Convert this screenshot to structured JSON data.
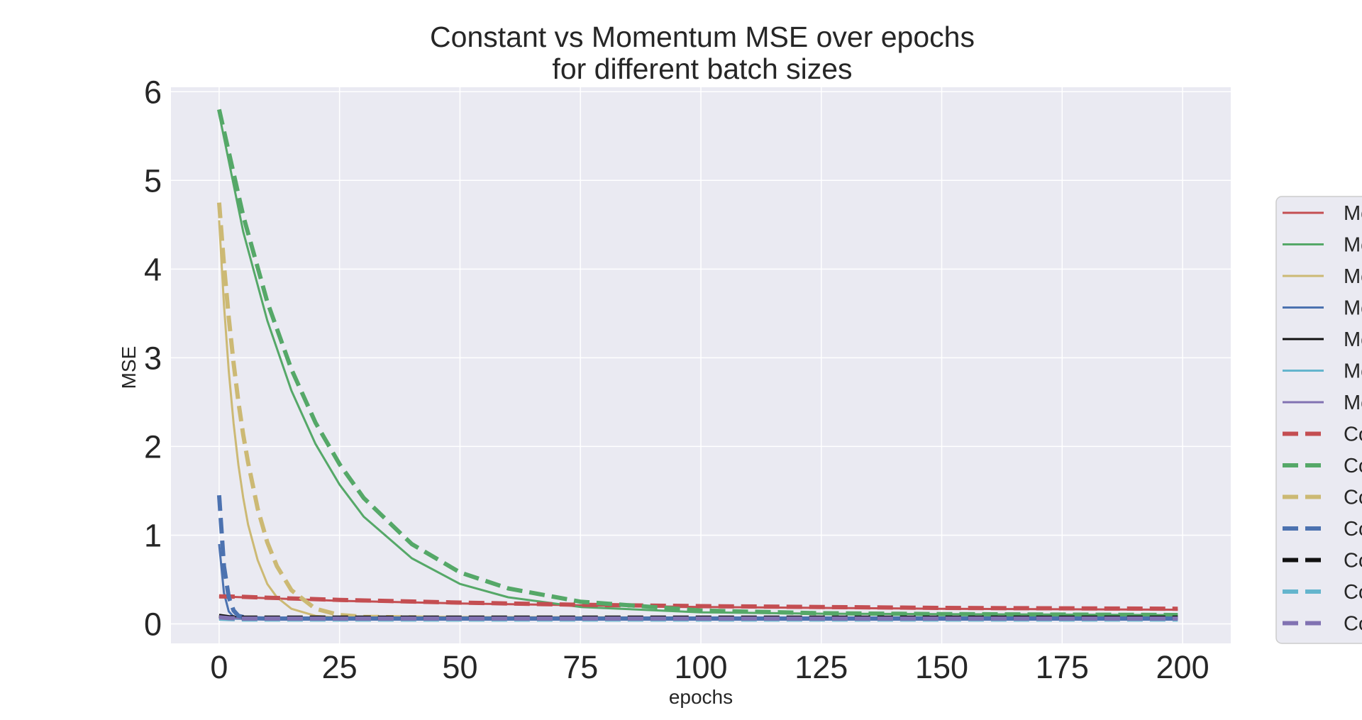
{
  "chart_data": {
    "type": "line",
    "title": "Constant vs Momentum MSE over epochs\nfor different batch sizes",
    "title_lines": [
      "Constant vs Momentum MSE over epochs",
      "for different batch sizes"
    ],
    "xlabel": "epochs",
    "ylabel": "MSE",
    "xlim": [
      -10,
      210
    ],
    "ylim": [
      -0.22,
      6.05
    ],
    "xticks": [
      0,
      25,
      50,
      75,
      100,
      125,
      150,
      175,
      200
    ],
    "yticks": [
      0,
      1,
      2,
      3,
      4,
      5,
      6
    ],
    "grid": true,
    "legend_position": "right (outside, clipped)",
    "background": "#eaeaf2",
    "series": [
      {
        "label": "Mo",
        "style": "solid",
        "color": "#c44e52",
        "x": [
          0,
          5,
          10,
          25,
          50,
          75,
          100,
          125,
          150,
          175,
          199
        ],
        "y": [
          0.31,
          0.3,
          0.29,
          0.26,
          0.23,
          0.21,
          0.19,
          0.18,
          0.17,
          0.165,
          0.16
        ]
      },
      {
        "label": "Mo",
        "style": "solid",
        "color": "#55a868",
        "x": [
          0,
          5,
          10,
          15,
          20,
          25,
          30,
          40,
          50,
          60,
          75,
          100,
          125,
          150,
          175,
          199
        ],
        "y": [
          5.75,
          4.42,
          3.42,
          2.63,
          2.03,
          1.57,
          1.21,
          0.74,
          0.45,
          0.3,
          0.19,
          0.13,
          0.115,
          0.11,
          0.105,
          0.1
        ]
      },
      {
        "label": "Mo",
        "style": "solid",
        "color": "#ccb974",
        "x": [
          0,
          1,
          2,
          3,
          4,
          5,
          6,
          8,
          10,
          12,
          15,
          20,
          25,
          30,
          50,
          100,
          150,
          199
        ],
        "y": [
          4.55,
          3.6,
          2.85,
          2.26,
          1.79,
          1.42,
          1.12,
          0.72,
          0.45,
          0.3,
          0.17,
          0.09,
          0.07,
          0.065,
          0.06,
          0.06,
          0.06,
          0.06
        ]
      },
      {
        "label": "Mo",
        "style": "solid",
        "color": "#4c72b0",
        "x": [
          0,
          1,
          2,
          3,
          5,
          10,
          50,
          100,
          150,
          199
        ],
        "y": [
          0.9,
          0.35,
          0.14,
          0.08,
          0.06,
          0.06,
          0.06,
          0.06,
          0.06,
          0.06
        ]
      },
      {
        "label": "Mo",
        "style": "solid",
        "color": "#111111",
        "x": [
          0,
          2,
          5,
          50,
          100,
          150,
          199
        ],
        "y": [
          0.1,
          0.08,
          0.07,
          0.07,
          0.07,
          0.07,
          0.07
        ]
      },
      {
        "label": "Mo",
        "style": "solid",
        "color": "#64b5cd",
        "x": [
          0,
          2,
          5,
          50,
          100,
          150,
          199
        ],
        "y": [
          0.07,
          0.06,
          0.055,
          0.055,
          0.055,
          0.055,
          0.055
        ]
      },
      {
        "label": "Mo",
        "style": "solid",
        "color": "#8172b2",
        "x": [
          0,
          2,
          5,
          50,
          100,
          150,
          199
        ],
        "y": [
          0.08,
          0.065,
          0.06,
          0.06,
          0.06,
          0.06,
          0.06
        ]
      },
      {
        "label": "Co",
        "style": "dashed",
        "color": "#c44e52",
        "x": [
          0,
          5,
          10,
          25,
          50,
          75,
          100,
          125,
          150,
          175,
          199
        ],
        "y": [
          0.31,
          0.305,
          0.295,
          0.27,
          0.24,
          0.215,
          0.2,
          0.19,
          0.18,
          0.175,
          0.17
        ]
      },
      {
        "label": "Co",
        "style": "dashed",
        "color": "#55a868",
        "x": [
          0,
          5,
          10,
          15,
          20,
          25,
          30,
          40,
          50,
          60,
          75,
          100,
          125,
          150,
          175,
          199
        ],
        "y": [
          5.8,
          4.6,
          3.63,
          2.87,
          2.27,
          1.8,
          1.42,
          0.9,
          0.58,
          0.4,
          0.25,
          0.15,
          0.12,
          0.11,
          0.105,
          0.1
        ]
      },
      {
        "label": "Co",
        "style": "dashed",
        "color": "#ccb974",
        "x": [
          0,
          1,
          2,
          3,
          4,
          5,
          6,
          8,
          10,
          12,
          15,
          20,
          25,
          30,
          50,
          100,
          150,
          199
        ],
        "y": [
          4.75,
          4.05,
          3.45,
          2.94,
          2.5,
          2.13,
          1.82,
          1.3,
          0.92,
          0.65,
          0.38,
          0.17,
          0.1,
          0.08,
          0.065,
          0.06,
          0.06,
          0.06
        ]
      },
      {
        "label": "Co",
        "style": "dashed",
        "color": "#4c72b0",
        "x": [
          0,
          1,
          2,
          3,
          4,
          6,
          10,
          50,
          100,
          150,
          199
        ],
        "y": [
          1.45,
          0.65,
          0.3,
          0.15,
          0.09,
          0.065,
          0.06,
          0.06,
          0.06,
          0.06,
          0.06
        ]
      },
      {
        "label": "Co",
        "style": "dashed",
        "color": "#111111",
        "x": [
          0,
          2,
          5,
          50,
          100,
          150,
          199
        ],
        "y": [
          0.09,
          0.075,
          0.07,
          0.07,
          0.07,
          0.07,
          0.07
        ]
      },
      {
        "label": "Co",
        "style": "dashed",
        "color": "#64b5cd",
        "x": [
          0,
          2,
          5,
          50,
          100,
          150,
          199
        ],
        "y": [
          0.06,
          0.055,
          0.05,
          0.05,
          0.05,
          0.05,
          0.05
        ]
      },
      {
        "label": "Co",
        "style": "dashed",
        "color": "#8172b2",
        "x": [
          0,
          2,
          5,
          50,
          100,
          150,
          199
        ],
        "y": [
          0.075,
          0.065,
          0.06,
          0.06,
          0.06,
          0.06,
          0.06
        ]
      }
    ]
  }
}
